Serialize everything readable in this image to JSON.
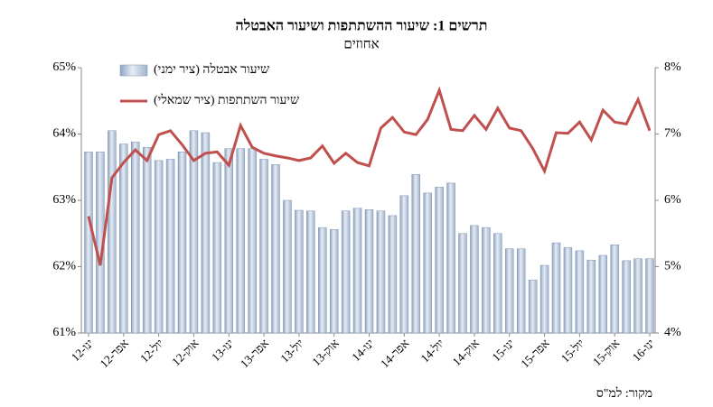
{
  "chart_data": {
    "type": "bar_line",
    "title": "תרשים 1: שיעור ההשתתפות ושיעור האבטלה",
    "subtitle": "אחוזים",
    "source": "מקור: למ\"ס",
    "categories": [
      "ינו-12",
      null,
      null,
      "אפר-12",
      null,
      null,
      "יול-12",
      null,
      null,
      "אוק-12",
      null,
      null,
      "ינו-13",
      null,
      null,
      "אפר-13",
      null,
      null,
      "יול-13",
      null,
      null,
      "אוק-13",
      null,
      null,
      "ינו-14",
      null,
      null,
      "אפר-14",
      null,
      null,
      "יול-14",
      null,
      null,
      "אוק-14",
      null,
      null,
      "ינו-15",
      null,
      null,
      "אפר-15",
      null,
      null,
      "יול-15",
      null,
      null,
      "אוק-15",
      null,
      null,
      "ינו-16"
    ],
    "series": [
      {
        "name": "שיעור אבטלה (ציר ימני)",
        "color": "#b8c8de",
        "axis": "y2",
        "kind": "bar",
        "values": [
          6.73,
          6.73,
          7.05,
          6.85,
          6.88,
          6.8,
          6.6,
          6.62,
          6.73,
          7.05,
          7.02,
          6.57,
          6.78,
          6.78,
          6.78,
          6.62,
          6.54,
          6.0,
          5.85,
          5.84,
          5.59,
          5.56,
          5.84,
          5.88,
          5.86,
          5.84,
          5.77,
          6.07,
          6.39,
          6.11,
          6.2,
          6.26,
          5.5,
          5.62,
          5.59,
          5.5,
          5.27,
          5.27,
          4.8,
          5.02,
          5.36,
          5.29,
          5.24,
          5.1,
          5.17,
          5.33,
          5.09,
          5.12,
          5.12
        ]
      },
      {
        "name": "שיעור השתתפות (ציר שמאלי)",
        "color": "#c0504d",
        "kind": "line",
        "values": [
          62.76,
          62.02,
          63.34,
          63.57,
          63.76,
          63.6,
          63.99,
          64.05,
          63.84,
          63.6,
          63.71,
          63.73,
          63.53,
          64.13,
          63.8,
          63.71,
          63.67,
          63.64,
          63.6,
          63.64,
          63.82,
          63.56,
          63.71,
          63.57,
          63.52,
          64.09,
          64.25,
          64.03,
          63.99,
          64.22,
          64.66,
          64.07,
          64.05,
          64.28,
          64.07,
          64.39,
          64.09,
          64.05,
          63.78,
          63.44,
          64.02,
          64.01,
          64.18,
          63.91,
          64.36,
          64.18,
          64.15,
          64.52,
          64.05
        ]
      }
    ],
    "ylim": [
      61,
      65
    ],
    "yticks": [
      {
        "value": 61,
        "label": "61%"
      },
      {
        "value": 62,
        "label": "62%"
      },
      {
        "value": 63,
        "label": "63%"
      },
      {
        "value": 64,
        "label": "64%"
      },
      {
        "value": 65,
        "label": "65%"
      }
    ],
    "y2lim": [
      4,
      8
    ],
    "y2ticks": [
      {
        "value": 4,
        "label": "4%"
      },
      {
        "value": 5,
        "label": "5%"
      },
      {
        "value": 6,
        "label": "6%"
      },
      {
        "value": 7,
        "label": "7%"
      },
      {
        "value": 8,
        "label": "8%"
      }
    ],
    "legend": "top-left"
  }
}
